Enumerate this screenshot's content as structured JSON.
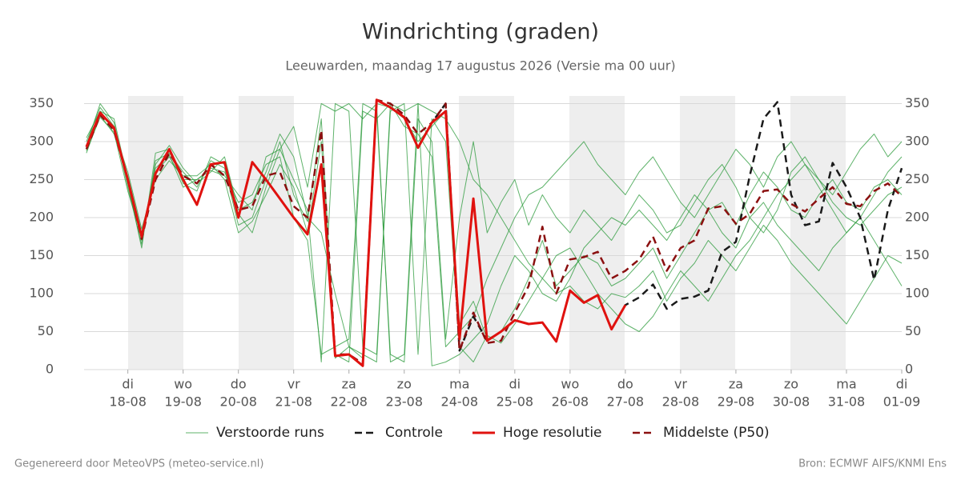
{
  "chart_data": {
    "type": "line",
    "title": "Windrichting (graden)",
    "subtitle": "Leeuwarden, maandag 17 augustus 2026 (Versie ma 00 uur)",
    "footer_left": "Gegenereerd door MeteoVPS (meteo-service.nl)",
    "footer_right": "Bron: ECMWF AIFS/KNMI Ens",
    "x": [
      6,
      12,
      18,
      24,
      30,
      36,
      42,
      48,
      54,
      60,
      66,
      72,
      78,
      84,
      90,
      96,
      102,
      108,
      114,
      120,
      126,
      132,
      138,
      144,
      150,
      156,
      162,
      168,
      174,
      180,
      186,
      192,
      198,
      204,
      210,
      216,
      222,
      228,
      234,
      240,
      246,
      252,
      258,
      264,
      270,
      276,
      282,
      288,
      294,
      300,
      306,
      312,
      318,
      324,
      330,
      336,
      342,
      348,
      354,
      360
    ],
    "xlim": [
      5,
      360
    ],
    "xticks": [
      {
        "value": 24,
        "label": "di",
        "sublabel": "18-08"
      },
      {
        "value": 48,
        "label": "wo",
        "sublabel": "19-08"
      },
      {
        "value": 72,
        "label": "do",
        "sublabel": "20-08"
      },
      {
        "value": 96,
        "label": "vr",
        "sublabel": "21-08"
      },
      {
        "value": 120,
        "label": "za",
        "sublabel": "22-08"
      },
      {
        "value": 144,
        "label": "zo",
        "sublabel": "23-08"
      },
      {
        "value": 168,
        "label": "ma",
        "sublabel": "24-08"
      },
      {
        "value": 192,
        "label": "di",
        "sublabel": "25-08"
      },
      {
        "value": 216,
        "label": "wo",
        "sublabel": "26-08"
      },
      {
        "value": 240,
        "label": "do",
        "sublabel": "27-08"
      },
      {
        "value": 264,
        "label": "vr",
        "sublabel": "28-08"
      },
      {
        "value": 288,
        "label": "za",
        "sublabel": "29-08"
      },
      {
        "value": 312,
        "label": "zo",
        "sublabel": "30-08"
      },
      {
        "value": 336,
        "label": "ma",
        "sublabel": "31-08"
      },
      {
        "value": 360,
        "label": "di",
        "sublabel": "01-09"
      }
    ],
    "ylim": [
      0,
      360
    ],
    "yticks": [
      0,
      50,
      100,
      150,
      200,
      250,
      300,
      350
    ],
    "grid": true,
    "legend": "bottom",
    "ensemble": {
      "name": "Verstoorde runs",
      "color": "#2a9a3a",
      "members": [
        [
          300,
          345,
          320,
          240,
          165,
          275,
          285,
          260,
          240,
          275,
          265,
          190,
          200,
          250,
          300,
          230,
          195,
          330,
          15,
          30,
          15,
          350,
          345,
          330,
          300,
          320,
          340,
          60,
          90,
          40,
          50,
          80,
          120,
          170,
          110,
          130,
          150,
          140,
          110,
          120,
          140,
          160,
          120,
          150,
          180,
          210,
          220,
          190,
          230,
          260,
          240,
          210,
          200,
          230,
          250,
          220,
          210,
          240,
          250,
          230
        ],
        [
          285,
          335,
          310,
          255,
          180,
          260,
          280,
          250,
          250,
          265,
          260,
          220,
          230,
          270,
          280,
          200,
          170,
          20,
          30,
          40,
          350,
          340,
          20,
          10,
          330,
          300,
          40,
          200,
          300,
          180,
          220,
          250,
          190,
          230,
          200,
          180,
          210,
          190,
          170,
          200,
          230,
          210,
          180,
          190,
          220,
          250,
          270,
          240,
          200,
          180,
          210,
          260,
          280,
          250,
          220,
          200,
          190,
          210,
          230,
          240
        ],
        [
          295,
          350,
          325,
          245,
          160,
          285,
          290,
          245,
          235,
          280,
          270,
          205,
          180,
          240,
          290,
          250,
          210,
          10,
          350,
          340,
          30,
          20,
          340,
          350,
          20,
          330,
          300,
          30,
          10,
          45,
          35,
          60,
          90,
          120,
          100,
          110,
          90,
          80,
          100,
          95,
          110,
          130,
          90,
          120,
          140,
          170,
          150,
          130,
          160,
          190,
          170,
          140,
          120,
          100,
          80,
          60,
          90,
          120,
          150,
          140
        ],
        [
          290,
          340,
          315,
          260,
          185,
          250,
          275,
          255,
          255,
          270,
          250,
          180,
          195,
          230,
          270,
          240,
          180,
          300,
          20,
          10,
          340,
          330,
          350,
          320,
          310,
          280,
          30,
          50,
          70,
          120,
          160,
          200,
          230,
          240,
          260,
          280,
          300,
          270,
          250,
          230,
          260,
          280,
          250,
          220,
          200,
          230,
          260,
          290,
          270,
          240,
          280,
          300,
          270,
          250,
          230,
          260,
          290,
          310,
          280,
          300
        ],
        [
          305,
          340,
          330,
          250,
          170,
          270,
          295,
          265,
          245,
          260,
          280,
          210,
          220,
          260,
          310,
          280,
          200,
          180,
          100,
          30,
          20,
          10,
          350,
          340,
          350,
          5,
          10,
          20,
          40,
          60,
          110,
          150,
          130,
          100,
          90,
          120,
          160,
          180,
          200,
          190,
          210,
          190,
          170,
          200,
          230,
          210,
          180,
          160,
          200,
          220,
          190,
          170,
          150,
          130,
          160,
          180,
          200,
          170,
          140,
          110
        ],
        [
          288,
          332,
          312,
          235,
          175,
          265,
          282,
          240,
          250,
          262,
          255,
          230,
          210,
          280,
          290,
          320,
          240,
          350,
          340,
          350,
          330,
          350,
          10,
          20,
          350,
          340,
          330,
          300,
          250,
          230,
          200,
          170,
          140,
          120,
          150,
          160,
          130,
          100,
          80,
          60,
          50,
          70,
          100,
          130,
          110,
          90,
          120,
          150,
          170,
          200,
          230,
          250,
          270,
          240,
          210,
          180,
          200,
          230,
          260,
          280
        ]
      ]
    },
    "series": [
      {
        "name": "Controle",
        "color": "#1a1a1a",
        "dash": true,
        "values": [
          293,
          338,
          318,
          250,
          175,
          258,
          290,
          250,
          217,
          270,
          273,
          200,
          273,
          250,
          225,
          200,
          178,
          270,
          18,
          20,
          5,
          355,
          345,
          332,
          292,
          325,
          350,
          25,
          70,
          38,
          50,
          65,
          60,
          62,
          37,
          104,
          88,
          98,
          53,
          85,
          95,
          112,
          80,
          93,
          96,
          104,
          155,
          168,
          255,
          330,
          352,
          230,
          190,
          195,
          272,
          240,
          200,
          118,
          210,
          265
        ]
      },
      {
        "name": "Hoge resolutie",
        "color": "#e0120f",
        "dash": false,
        "values": [
          293,
          338,
          318,
          250,
          175,
          258,
          290,
          250,
          217,
          270,
          273,
          200,
          273,
          250,
          225,
          200,
          178,
          270,
          18,
          20,
          5,
          355,
          345,
          332,
          292,
          325,
          340,
          40,
          225,
          38,
          50,
          65,
          60,
          62,
          37,
          104,
          88,
          98,
          53,
          85,
          null,
          null,
          null,
          null,
          null,
          null,
          null,
          null,
          null,
          null,
          null,
          null,
          null,
          null,
          null,
          null,
          null,
          null,
          null,
          null
        ]
      },
      {
        "name": "Middelste (P50)",
        "color": "#8b1010",
        "dash": true,
        "values": [
          290,
          335,
          315,
          250,
          172,
          250,
          285,
          255,
          245,
          270,
          255,
          210,
          215,
          255,
          260,
          215,
          200,
          315,
          20,
          20,
          8,
          355,
          350,
          335,
          310,
          325,
          350,
          25,
          75,
          35,
          38,
          75,
          110,
          188,
          100,
          145,
          148,
          155,
          120,
          130,
          145,
          175,
          130,
          160,
          170,
          212,
          215,
          192,
          205,
          235,
          237,
          218,
          208,
          225,
          240,
          218,
          215,
          235,
          245,
          228
        ]
      }
    ]
  }
}
